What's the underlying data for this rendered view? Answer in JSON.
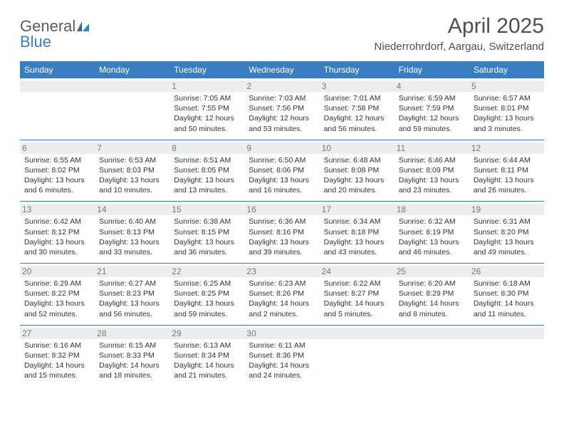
{
  "brand": {
    "word1": "General",
    "word2": "Blue"
  },
  "title": "April 2025",
  "subtitle": "Niederrohrdorf, Aargau, Switzerland",
  "colors": {
    "header_bg": "#3a7ec1",
    "header_text": "#ffffff",
    "daynum_bg": "#ecedef",
    "daynum_text": "#707880",
    "body_text": "#333333",
    "title_text": "#4a5056",
    "row_border": "#3a7ec1",
    "logo_gray": "#555c63",
    "logo_blue": "#3a7ec1",
    "page_bg": "#ffffff"
  },
  "typography": {
    "title_fontsize": 30,
    "subtitle_fontsize": 15,
    "dayheader_fontsize": 12,
    "daynum_fontsize": 12,
    "detail_fontsize": 10.5,
    "logo_fontsize": 22
  },
  "calendar": {
    "type": "table",
    "columns_count": 7,
    "day_headers": [
      "Sunday",
      "Monday",
      "Tuesday",
      "Wednesday",
      "Thursday",
      "Friday",
      "Saturday"
    ],
    "weeks": [
      [
        null,
        null,
        {
          "day": "1",
          "sunrise": "Sunrise: 7:05 AM",
          "sunset": "Sunset: 7:55 PM",
          "daylight": "Daylight: 12 hours and 50 minutes."
        },
        {
          "day": "2",
          "sunrise": "Sunrise: 7:03 AM",
          "sunset": "Sunset: 7:56 PM",
          "daylight": "Daylight: 12 hours and 53 minutes."
        },
        {
          "day": "3",
          "sunrise": "Sunrise: 7:01 AM",
          "sunset": "Sunset: 7:58 PM",
          "daylight": "Daylight: 12 hours and 56 minutes."
        },
        {
          "day": "4",
          "sunrise": "Sunrise: 6:59 AM",
          "sunset": "Sunset: 7:59 PM",
          "daylight": "Daylight: 12 hours and 59 minutes."
        },
        {
          "day": "5",
          "sunrise": "Sunrise: 6:57 AM",
          "sunset": "Sunset: 8:01 PM",
          "daylight": "Daylight: 13 hours and 3 minutes."
        }
      ],
      [
        {
          "day": "6",
          "sunrise": "Sunrise: 6:55 AM",
          "sunset": "Sunset: 8:02 PM",
          "daylight": "Daylight: 13 hours and 6 minutes."
        },
        {
          "day": "7",
          "sunrise": "Sunrise: 6:53 AM",
          "sunset": "Sunset: 8:03 PM",
          "daylight": "Daylight: 13 hours and 10 minutes."
        },
        {
          "day": "8",
          "sunrise": "Sunrise: 6:51 AM",
          "sunset": "Sunset: 8:05 PM",
          "daylight": "Daylight: 13 hours and 13 minutes."
        },
        {
          "day": "9",
          "sunrise": "Sunrise: 6:50 AM",
          "sunset": "Sunset: 8:06 PM",
          "daylight": "Daylight: 13 hours and 16 minutes."
        },
        {
          "day": "10",
          "sunrise": "Sunrise: 6:48 AM",
          "sunset": "Sunset: 8:08 PM",
          "daylight": "Daylight: 13 hours and 20 minutes."
        },
        {
          "day": "11",
          "sunrise": "Sunrise: 6:46 AM",
          "sunset": "Sunset: 8:09 PM",
          "daylight": "Daylight: 13 hours and 23 minutes."
        },
        {
          "day": "12",
          "sunrise": "Sunrise: 6:44 AM",
          "sunset": "Sunset: 8:11 PM",
          "daylight": "Daylight: 13 hours and 26 minutes."
        }
      ],
      [
        {
          "day": "13",
          "sunrise": "Sunrise: 6:42 AM",
          "sunset": "Sunset: 8:12 PM",
          "daylight": "Daylight: 13 hours and 30 minutes."
        },
        {
          "day": "14",
          "sunrise": "Sunrise: 6:40 AM",
          "sunset": "Sunset: 8:13 PM",
          "daylight": "Daylight: 13 hours and 33 minutes."
        },
        {
          "day": "15",
          "sunrise": "Sunrise: 6:38 AM",
          "sunset": "Sunset: 8:15 PM",
          "daylight": "Daylight: 13 hours and 36 minutes."
        },
        {
          "day": "16",
          "sunrise": "Sunrise: 6:36 AM",
          "sunset": "Sunset: 8:16 PM",
          "daylight": "Daylight: 13 hours and 39 minutes."
        },
        {
          "day": "17",
          "sunrise": "Sunrise: 6:34 AM",
          "sunset": "Sunset: 8:18 PM",
          "daylight": "Daylight: 13 hours and 43 minutes."
        },
        {
          "day": "18",
          "sunrise": "Sunrise: 6:32 AM",
          "sunset": "Sunset: 8:19 PM",
          "daylight": "Daylight: 13 hours and 46 minutes."
        },
        {
          "day": "19",
          "sunrise": "Sunrise: 6:31 AM",
          "sunset": "Sunset: 8:20 PM",
          "daylight": "Daylight: 13 hours and 49 minutes."
        }
      ],
      [
        {
          "day": "20",
          "sunrise": "Sunrise: 6:29 AM",
          "sunset": "Sunset: 8:22 PM",
          "daylight": "Daylight: 13 hours and 52 minutes."
        },
        {
          "day": "21",
          "sunrise": "Sunrise: 6:27 AM",
          "sunset": "Sunset: 8:23 PM",
          "daylight": "Daylight: 13 hours and 56 minutes."
        },
        {
          "day": "22",
          "sunrise": "Sunrise: 6:25 AM",
          "sunset": "Sunset: 8:25 PM",
          "daylight": "Daylight: 13 hours and 59 minutes."
        },
        {
          "day": "23",
          "sunrise": "Sunrise: 6:23 AM",
          "sunset": "Sunset: 8:26 PM",
          "daylight": "Daylight: 14 hours and 2 minutes."
        },
        {
          "day": "24",
          "sunrise": "Sunrise: 6:22 AM",
          "sunset": "Sunset: 8:27 PM",
          "daylight": "Daylight: 14 hours and 5 minutes."
        },
        {
          "day": "25",
          "sunrise": "Sunrise: 6:20 AM",
          "sunset": "Sunset: 8:29 PM",
          "daylight": "Daylight: 14 hours and 8 minutes."
        },
        {
          "day": "26",
          "sunrise": "Sunrise: 6:18 AM",
          "sunset": "Sunset: 8:30 PM",
          "daylight": "Daylight: 14 hours and 11 minutes."
        }
      ],
      [
        {
          "day": "27",
          "sunrise": "Sunrise: 6:16 AM",
          "sunset": "Sunset: 8:32 PM",
          "daylight": "Daylight: 14 hours and 15 minutes."
        },
        {
          "day": "28",
          "sunrise": "Sunrise: 6:15 AM",
          "sunset": "Sunset: 8:33 PM",
          "daylight": "Daylight: 14 hours and 18 minutes."
        },
        {
          "day": "29",
          "sunrise": "Sunrise: 6:13 AM",
          "sunset": "Sunset: 8:34 PM",
          "daylight": "Daylight: 14 hours and 21 minutes."
        },
        {
          "day": "30",
          "sunrise": "Sunrise: 6:11 AM",
          "sunset": "Sunset: 8:36 PM",
          "daylight": "Daylight: 14 hours and 24 minutes."
        },
        null,
        null,
        null
      ]
    ]
  }
}
